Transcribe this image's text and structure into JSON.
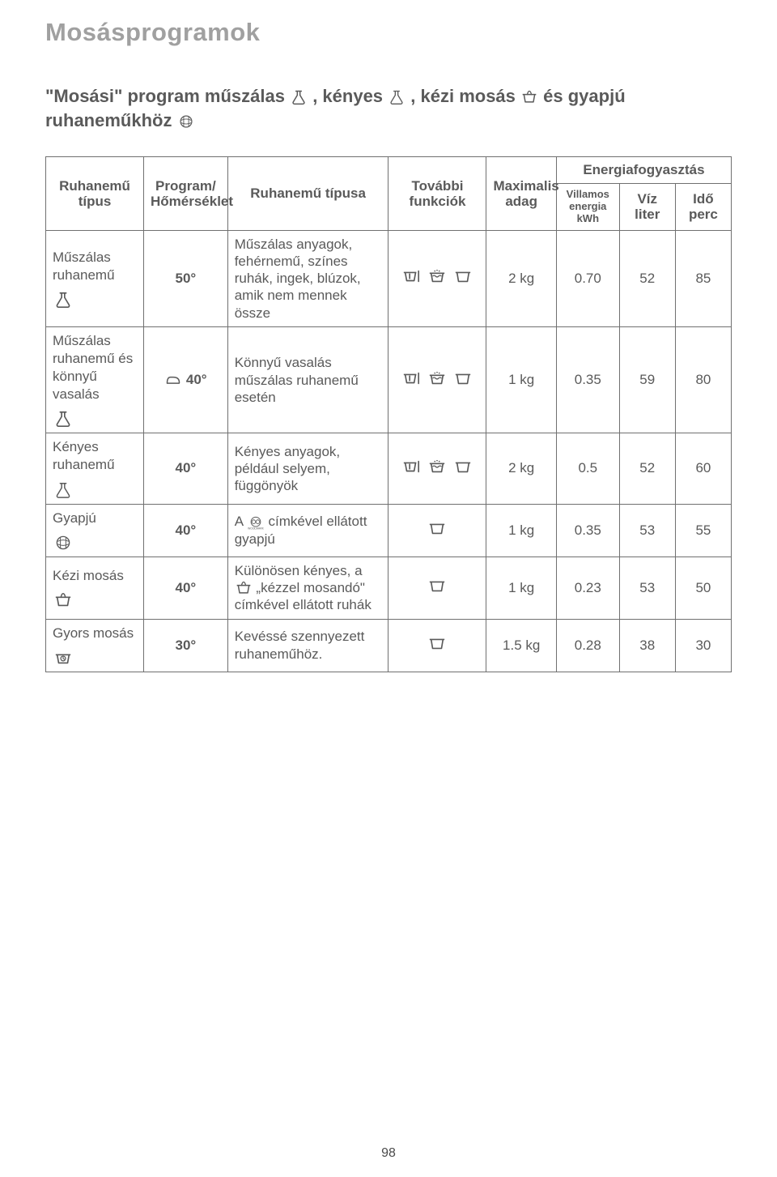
{
  "page": {
    "title": "Mosásprogramok",
    "intro_parts": [
      "\"Mosási\" program műszálas ",
      ", kényes ",
      ", kézi mosás ",
      " és gyapjú ruhaneműkhöz "
    ],
    "page_number": "98"
  },
  "headers": {
    "type": "Ruhanemű típus",
    "program": "Program/ Hőmérséklet",
    "desc": "Ruhanemű típusa",
    "functions": "További funkciók",
    "load": "Maximalis adag",
    "energy_group": "Energiafogyasztás",
    "energy": "Villamos energia kWh",
    "water": "Víz liter",
    "time": "Idő perc"
  },
  "rows": [
    {
      "type_label": "Műszálas ruhanemű",
      "type_icon": "synthetic",
      "prog_icon": null,
      "temp": "50°",
      "desc": "Műszálas anyagok, fehérnemű, színes ruhák, ingek, blúzok, amik nem mennek össze",
      "desc_inline_icon": null,
      "func_icons": [
        "prewash",
        "rinse",
        "tub"
      ],
      "load": "2 kg",
      "energy": "0.70",
      "water": "52",
      "time": "85"
    },
    {
      "type_label": "Műszálas ruhanemű és könnyű vasalás",
      "type_icon": "synthetic",
      "prog_icon": "iron",
      "temp": "40°",
      "desc": "Könnyű vasalás műszálas ruhanemű esetén",
      "desc_inline_icon": null,
      "func_icons": [
        "prewash",
        "rinse",
        "tub"
      ],
      "load": "1 kg",
      "energy": "0.35",
      "water": "59",
      "time": "80"
    },
    {
      "type_label": "Kényes ruhanemű",
      "type_icon": "delicate",
      "prog_icon": null,
      "temp": "40°",
      "desc": "Kényes anyagok, például selyem, függönyök",
      "desc_inline_icon": null,
      "func_icons": [
        "prewash",
        "rinse",
        "tub"
      ],
      "load": "2 kg",
      "energy": "0.5",
      "water": "52",
      "time": "60"
    },
    {
      "type_label": "Gyapjú",
      "type_icon": "wool",
      "prog_icon": null,
      "temp": "40°",
      "desc": "A {woolmark} címkével ellátott gyapjú",
      "desc_inline_icon": "woolmark",
      "func_icons": [
        "tub"
      ],
      "load": "1 kg",
      "energy": "0.35",
      "water": "53",
      "time": "55"
    },
    {
      "type_label": "Kézi mosás",
      "type_icon": "handwash",
      "prog_icon": null,
      "temp": "40°",
      "desc": "Különösen kényes, a {handwash} „kézzel mosandó\" címkével ellátott ruhák",
      "desc_inline_icon": "handwash",
      "func_icons": [
        "tub"
      ],
      "load": "1 kg",
      "energy": "0.23",
      "water": "53",
      "time": "50"
    },
    {
      "type_label": "Gyors mosás",
      "type_icon": "quick",
      "prog_icon": null,
      "temp": "30°",
      "desc": "Kevéssé szennyezett ruhaneműhöz.",
      "desc_inline_icon": null,
      "func_icons": [
        "tub"
      ],
      "load": "1.5 kg",
      "energy": "0.28",
      "water": "38",
      "time": "30"
    }
  ],
  "styling": {
    "colors": {
      "text": "#5a5a5a",
      "title": "#a0a0a0",
      "border": "#707070",
      "background": "#ffffff"
    },
    "font_sizes_pt": {
      "title": 23,
      "intro": 16,
      "table": 13,
      "page_num": 12
    },
    "column_widths_pct": [
      14,
      12,
      23,
      14,
      10,
      9,
      8,
      8
    ],
    "icon_stroke": "#5a5a5a",
    "icon_stroke_width": 1.8
  }
}
